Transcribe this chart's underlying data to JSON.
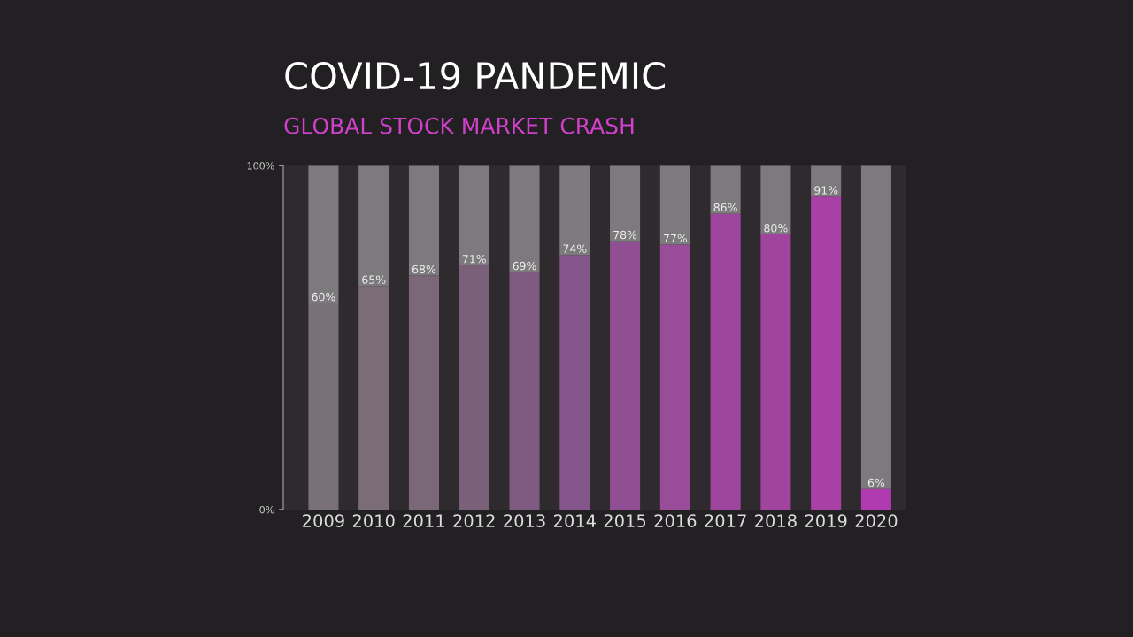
{
  "chart_data": {
    "type": "bar",
    "stacked": true,
    "title": "COVID-19 PANDEMIC",
    "subtitle": "GLOBAL STOCK MARKET CRASH",
    "categories": [
      "2009",
      "2010",
      "2011",
      "2012",
      "2013",
      "2014",
      "2015",
      "2016",
      "2017",
      "2018",
      "2019",
      "2020"
    ],
    "series": [
      {
        "colors": [
          "#7a7178",
          "#7b6d78",
          "#7a6878",
          "#7a6078",
          "#7e5a80",
          "#84558a",
          "#8f4f92",
          "#994c9a",
          "#9e469e",
          "#a0449e",
          "#a840a6",
          "#b03ab0"
        ],
        "values": [
          60,
          65,
          68,
          71,
          69,
          74,
          78,
          77,
          86,
          80,
          91,
          6
        ],
        "value_labels": [
          "60%",
          "65%",
          "68%",
          "71%",
          "69%",
          "74%",
          "78%",
          "77%",
          "86%",
          "80%",
          "91%",
          "6%"
        ]
      },
      {
        "color": "#7c7a7c",
        "values": [
          40,
          35,
          32,
          29,
          31,
          26,
          22,
          23,
          14,
          20,
          9,
          94
        ]
      }
    ],
    "ylim": [
      0,
      100
    ],
    "yticks": [
      {
        "value": 0,
        "label": "0%"
      },
      {
        "value": 100,
        "label": "100%"
      }
    ],
    "grid": false
  }
}
